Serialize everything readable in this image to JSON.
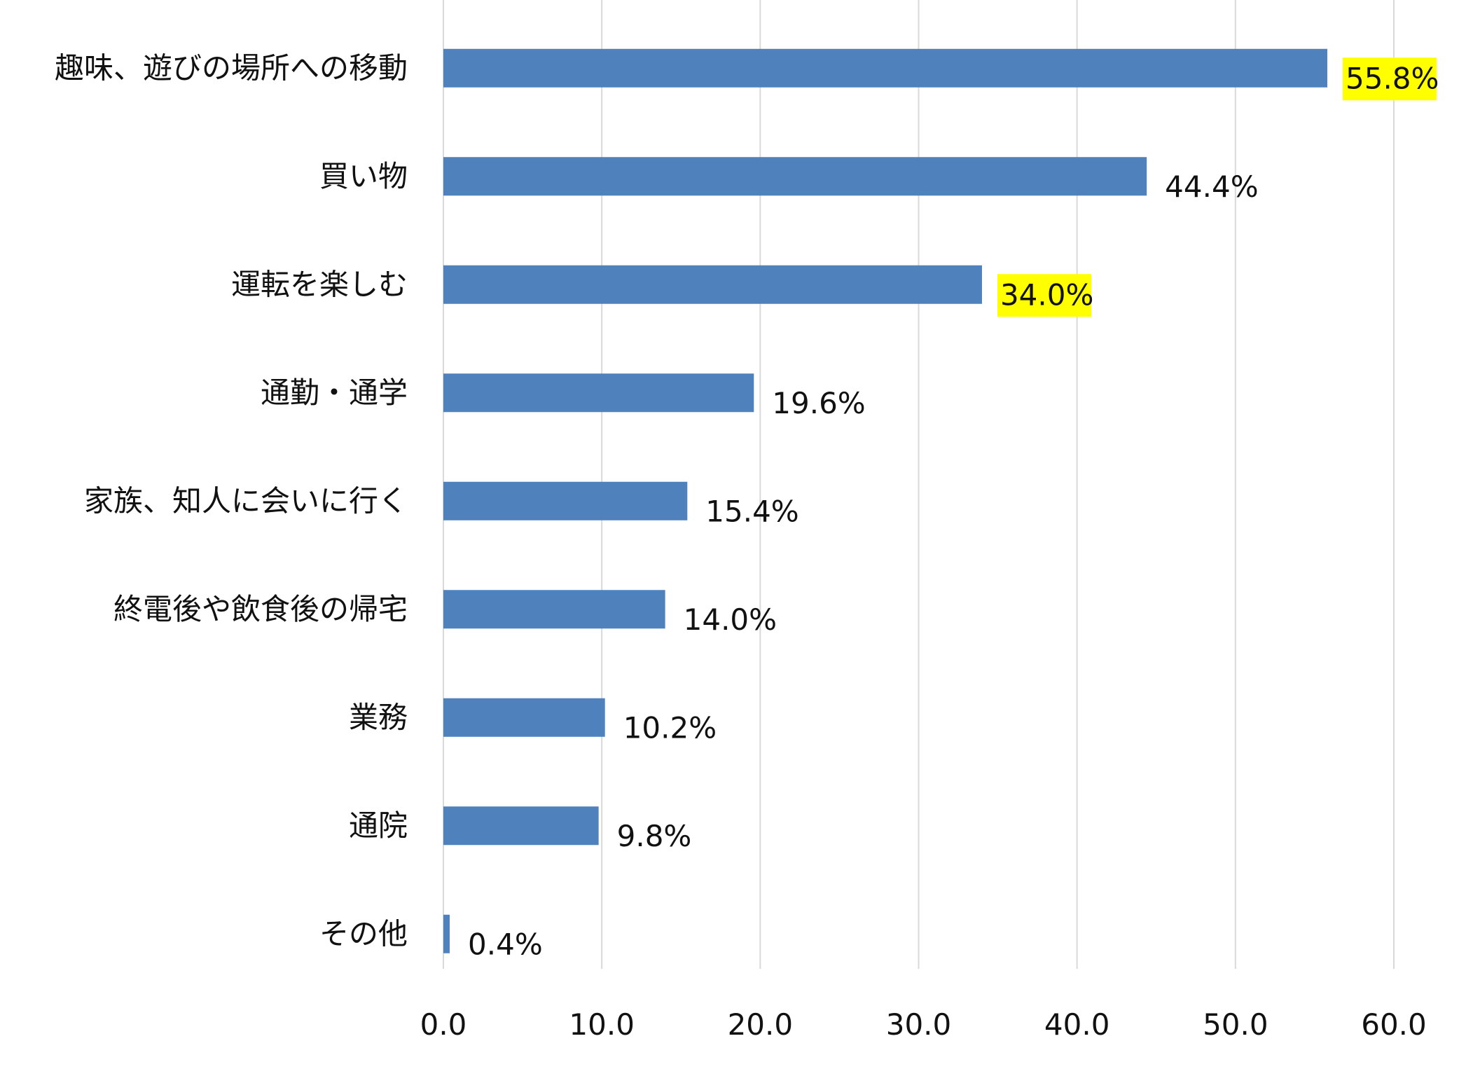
{
  "chart_data": {
    "type": "bar",
    "orientation": "horizontal",
    "categories": [
      "趣味、遊びの場所への移動",
      "買い物",
      "運転を楽しむ",
      "通勤・通学",
      "家族、知人に会いに行く",
      "終電後や飲食後の帰宅",
      "業務",
      "通院",
      "その他"
    ],
    "values": [
      55.8,
      44.4,
      34.0,
      19.6,
      15.4,
      14.0,
      10.2,
      9.8,
      0.4
    ],
    "data_labels": [
      "55.8%",
      "44.4%",
      "34.0%",
      "19.6%",
      "15.4%",
      "14.0%",
      "10.2%",
      "9.8%",
      "0.4%"
    ],
    "highlighted": [
      true,
      false,
      true,
      false,
      false,
      false,
      false,
      false,
      false
    ],
    "xlim": [
      0,
      60
    ],
    "x_ticks": [
      "0.0",
      "10.0",
      "20.0",
      "30.0",
      "40.0",
      "50.0",
      "60.0"
    ],
    "grid": "vertical",
    "title": "",
    "xlabel": "",
    "ylabel": "",
    "legend": "none",
    "colors": {
      "bar": "#4f81bd",
      "highlight": "#ffff00",
      "grid": "#d9d9d9",
      "text": "#111111"
    }
  }
}
